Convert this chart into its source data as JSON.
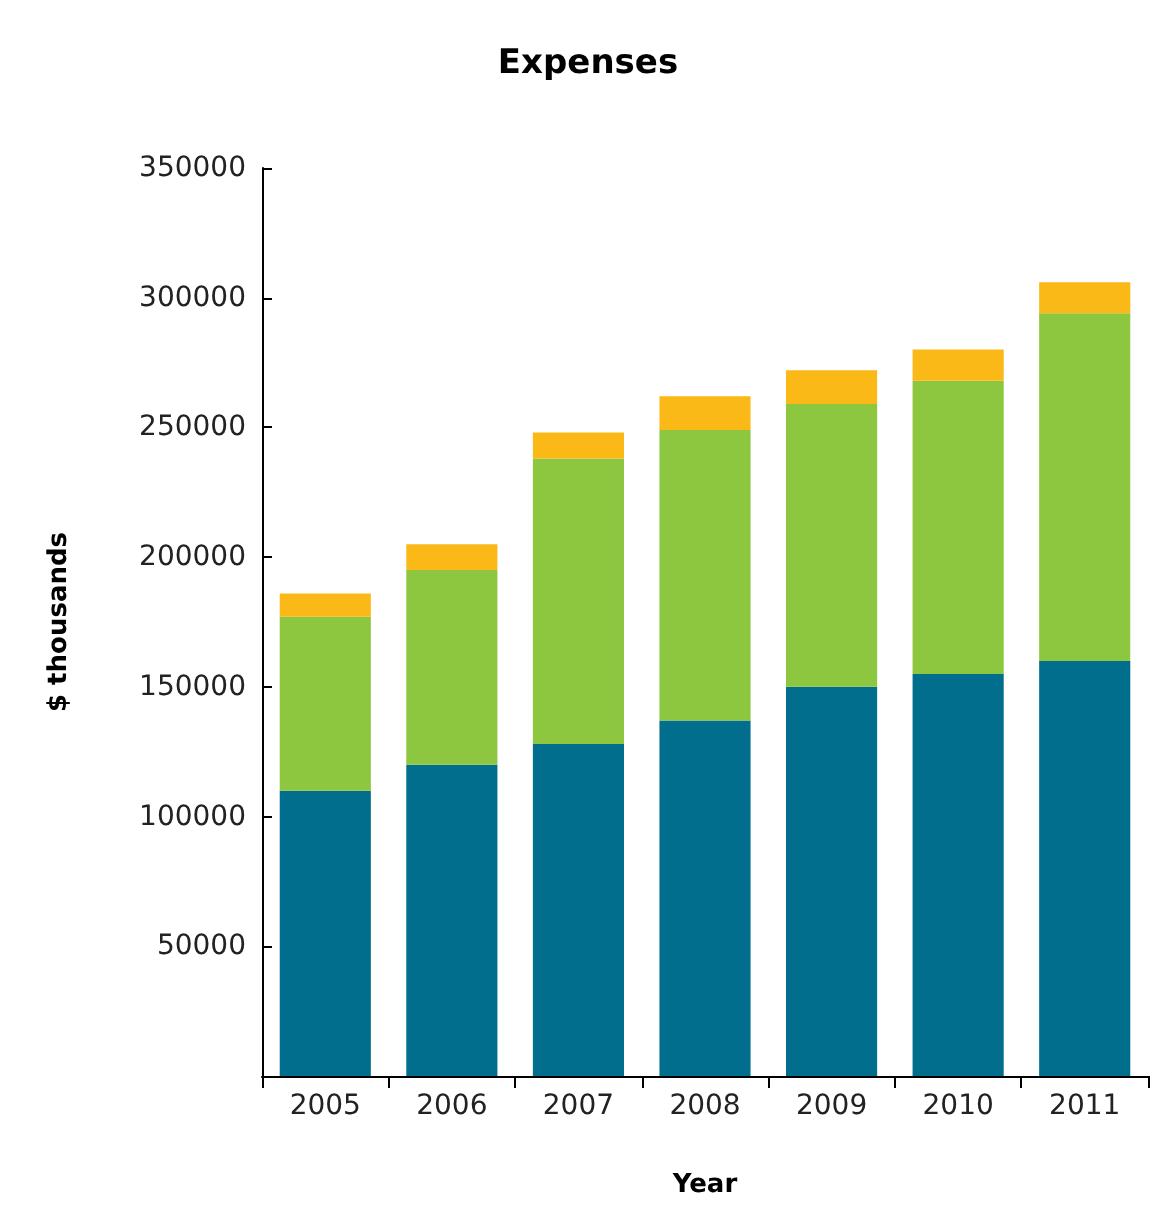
{
  "chart_data": {
    "type": "bar",
    "title": "Expenses",
    "xlabel": "Year",
    "ylabel": "$ thousands",
    "stacked": true,
    "categories": [
      "2005",
      "2006",
      "2007",
      "2008",
      "2009",
      "2010",
      "2011"
    ],
    "series": [
      {
        "color": "#006e8c",
        "values": [
          110000,
          120000,
          128000,
          137000,
          150000,
          155000,
          160000
        ]
      },
      {
        "color": "#8dc63f",
        "values": [
          67000,
          75000,
          110000,
          112000,
          109000,
          113000,
          134000
        ]
      },
      {
        "color": "#fbb917",
        "values": [
          9000,
          10000,
          10000,
          13000,
          13000,
          12000,
          12000
        ]
      }
    ],
    "ylim": [
      0,
      350000
    ],
    "yticks": [
      50000,
      100000,
      150000,
      200000,
      250000,
      300000,
      350000
    ],
    "grid": false
  }
}
